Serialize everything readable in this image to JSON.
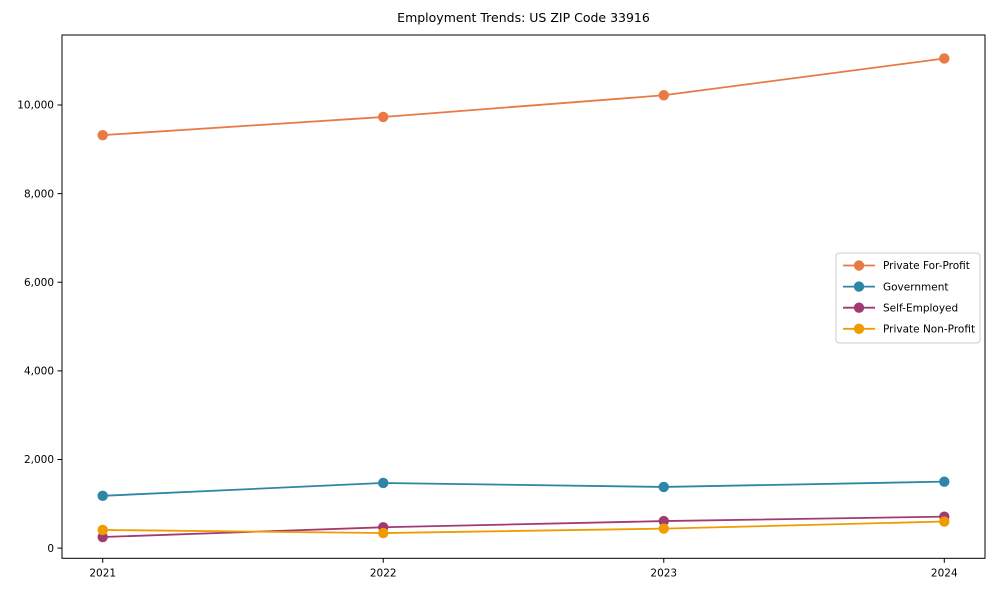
{
  "figure": {
    "background": "#ffffff",
    "spine_color": "#000000",
    "text_color": "#000000",
    "legend_border_color": "#cccccc",
    "legend_background": "#ffffff"
  },
  "chart_data": {
    "type": "line",
    "title": "Employment Trends: US ZIP Code 33916",
    "xlabel": "",
    "ylabel": "",
    "categories": [
      "2021",
      "2022",
      "2023",
      "2024"
    ],
    "series": [
      {
        "name": "Private For-Profit",
        "color": "#e87a45",
        "values": [
          9320,
          9730,
          10220,
          11050
        ]
      },
      {
        "name": "Government",
        "color": "#2e86a6",
        "values": [
          1180,
          1470,
          1380,
          1500
        ]
      },
      {
        "name": "Self-Employed",
        "color": "#a23a72",
        "values": [
          250,
          470,
          610,
          710
        ]
      },
      {
        "name": "Private Non-Profit",
        "color": "#f09c01",
        "values": [
          410,
          340,
          440,
          600
        ]
      }
    ],
    "yticks": [
      0,
      2000,
      4000,
      6000,
      8000,
      10000
    ],
    "ytick_labels": [
      "0",
      "2,000",
      "4,000",
      "6,000",
      "8,000",
      "10,000"
    ],
    "ylim": [
      -230,
      11580
    ],
    "grid": false,
    "legend_position": "center right",
    "marker": "circle"
  }
}
